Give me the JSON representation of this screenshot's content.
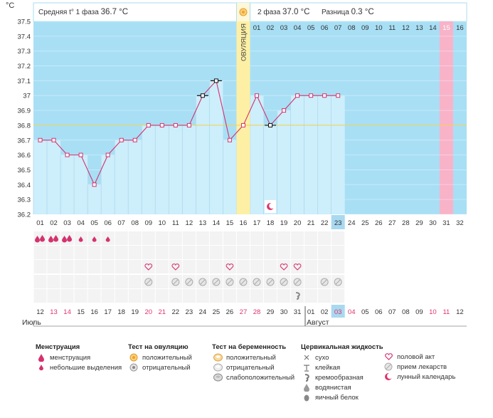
{
  "header": {
    "phase1_label": "Средняя t° 1 фаза",
    "phase1_value": "36.7 °C",
    "phase2_label": "2 фаза",
    "phase2_value": "37.0 °C",
    "diff_label": "Разница",
    "diff_value": "0.3 °C"
  },
  "ovulation_label": "ОВУЛЯЦИЯ",
  "colors": {
    "sky": "#a8dff5",
    "bar_fill": "#cdeefb",
    "line": "#d4326e",
    "ovulation": "#fdf0a5",
    "period_day": "#f8b3c9",
    "today": "#a8d9f0",
    "coverline": "#f2d14a"
  },
  "chart_data": {
    "type": "line",
    "title": "",
    "xlabel": "",
    "ylabel": "°C",
    "ylim": [
      36.2,
      37.5
    ],
    "yticks": [
      "36.2",
      "36.3",
      "36.4",
      "36.5",
      "36.6",
      "36.7",
      "36.8",
      "36.9",
      "37",
      "37.1",
      "37.2",
      "37.3",
      "37.4",
      "37.5"
    ],
    "cycle_days": [
      "01",
      "02",
      "03",
      "04",
      "05",
      "06",
      "07",
      "08",
      "09",
      "10",
      "11",
      "12",
      "13",
      "14",
      "15",
      "16",
      "17",
      "18",
      "19",
      "20",
      "21",
      "22",
      "23",
      "24",
      "25",
      "26",
      "27",
      "28",
      "29",
      "30",
      "31",
      "32"
    ],
    "post_ovulation_days": [
      "01",
      "02",
      "03",
      "04",
      "05",
      "06",
      "07",
      "08",
      "09",
      "10",
      "11",
      "12",
      "13",
      "14",
      "15",
      "16"
    ],
    "temperatures": [
      36.7,
      36.7,
      36.6,
      36.6,
      36.4,
      36.6,
      36.7,
      36.7,
      36.8,
      36.8,
      36.8,
      36.8,
      37.0,
      37.1,
      36.7,
      36.8,
      37.0,
      36.8,
      36.9,
      37.0,
      37.0,
      37.0,
      37.0
    ],
    "marked_days": [
      13,
      14,
      18
    ],
    "ovulation_day": 16,
    "coverline": 36.8,
    "today_index": 23,
    "period_index": 31,
    "calendar_dates": [
      "12",
      "13",
      "14",
      "15",
      "16",
      "17",
      "18",
      "19",
      "20",
      "21",
      "22",
      "23",
      "24",
      "25",
      "26",
      "27",
      "28",
      "29",
      "30",
      "31",
      "01",
      "02",
      "03",
      "04",
      "05",
      "06",
      "07",
      "08",
      "09",
      "10",
      "11",
      "12"
    ],
    "red_dates_idx": [
      1,
      2,
      8,
      9,
      15,
      16,
      22,
      23,
      29,
      30
    ],
    "month1": "Июль",
    "month2": "Август",
    "menstruation": {
      "1": "big",
      "2": "big",
      "3": "big",
      "4": "small",
      "5": "small",
      "6": "small"
    },
    "sex_days": [
      9,
      11,
      15,
      19,
      20
    ],
    "preg_test_days": [
      9,
      11,
      12,
      13,
      14,
      15,
      16,
      17,
      18,
      19,
      20,
      22,
      23
    ],
    "mucus_days": [
      20
    ],
    "lunar_day": 18
  },
  "legend": {
    "menstruation": {
      "title": "Менструация",
      "items": [
        "менструация",
        "небольшие выделения"
      ]
    },
    "ovulation_test": {
      "title": "Тест на овуляцию",
      "items": [
        "положительный",
        "отрицательный"
      ]
    },
    "pregnancy_test": {
      "title": "Тест на беременность",
      "items": [
        "положительный",
        "отрицательный",
        "слабоположительный"
      ]
    },
    "cervical": {
      "title": "Цервикальная жидкость",
      "items": [
        "сухо",
        "клейкая",
        "кремообразная",
        "водянистая",
        "яичный белок"
      ]
    },
    "other": {
      "items": [
        "половой акт",
        "прием лекарств",
        "лунный календарь"
      ]
    }
  }
}
